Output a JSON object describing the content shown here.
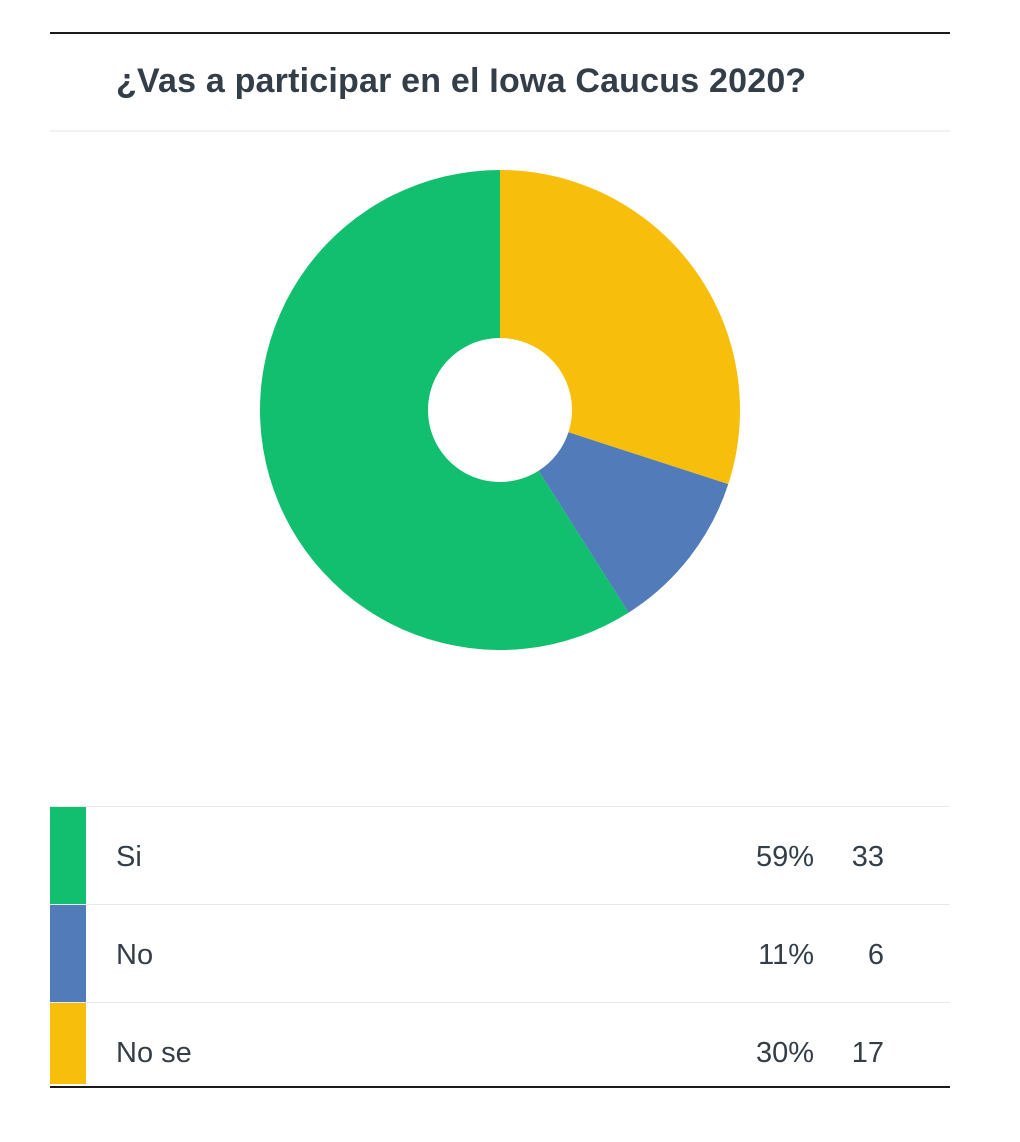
{
  "chart_data": {
    "type": "pie",
    "title": "¿Vas a participar en el Iowa Caucus 2020?",
    "donut": true,
    "categories": [
      "Si",
      "No",
      "No se"
    ],
    "values": [
      59,
      11,
      30
    ],
    "percent_labels": [
      "59%",
      "11%",
      "30%"
    ],
    "counts": [
      33,
      6,
      17
    ],
    "colors": [
      "#12bf6f",
      "#527bba",
      "#f7bf0c"
    ],
    "legend_placement": "bottom"
  },
  "legend": {
    "rows": [
      {
        "label": "Si",
        "percent": "59%",
        "count": "33",
        "color": "#12bf6f"
      },
      {
        "label": "No",
        "percent": "11%",
        "count": "6",
        "color": "#527bba"
      },
      {
        "label": "No se",
        "percent": "30%",
        "count": "17",
        "color": "#f7bf0c"
      }
    ]
  }
}
